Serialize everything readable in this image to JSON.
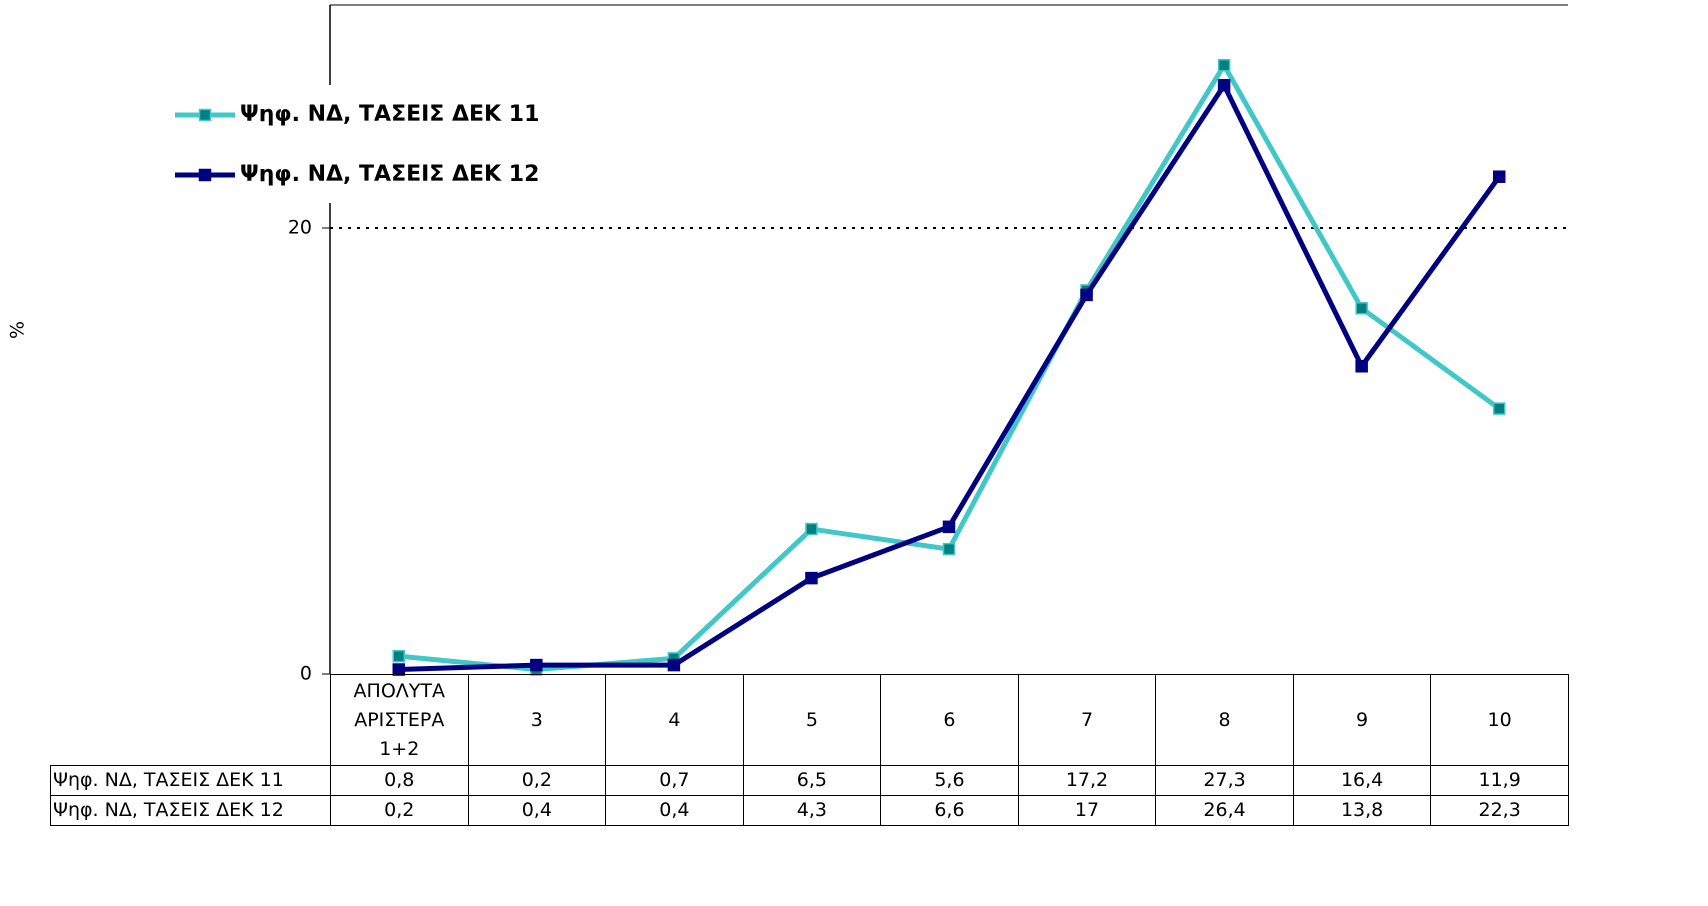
{
  "chart_data": {
    "type": "line",
    "y_label": "%",
    "categories": [
      "ΑΠΟΛΥΤΑ ΑΡΙΣΤΕΡΑ 1+2",
      "3",
      "4",
      "5",
      "6",
      "7",
      "8",
      "9",
      "10"
    ],
    "series": [
      {
        "name": "Ψηφ. ΝΔ, ΤΑΣΕΙΣ ΔΕΚ 11",
        "color": "#40c8c8",
        "marker_color": "#008080",
        "values": [
          0.8,
          0.2,
          0.7,
          6.5,
          5.6,
          17.2,
          27.3,
          16.4,
          11.9
        ],
        "value_labels": [
          "0,8",
          "0,2",
          "0,7",
          "6,5",
          "5,6",
          "17,2",
          "27,3",
          "16,4",
          "11,9"
        ]
      },
      {
        "name": "Ψηφ. ΝΔ, ΤΑΣΕΙΣ ΔΕΚ 12",
        "color": "#000080",
        "marker_color": "#000080",
        "values": [
          0.2,
          0.4,
          0.4,
          4.3,
          6.6,
          17,
          26.4,
          13.8,
          22.3
        ],
        "value_labels": [
          "0,2",
          "0,4",
          "0,4",
          "4,3",
          "6,6",
          "17",
          "26,4",
          "13,8",
          "22,3"
        ]
      }
    ],
    "ylim": [
      0,
      30
    ],
    "yticks": [
      0,
      20
    ],
    "grid": true,
    "legend": "top-left"
  }
}
